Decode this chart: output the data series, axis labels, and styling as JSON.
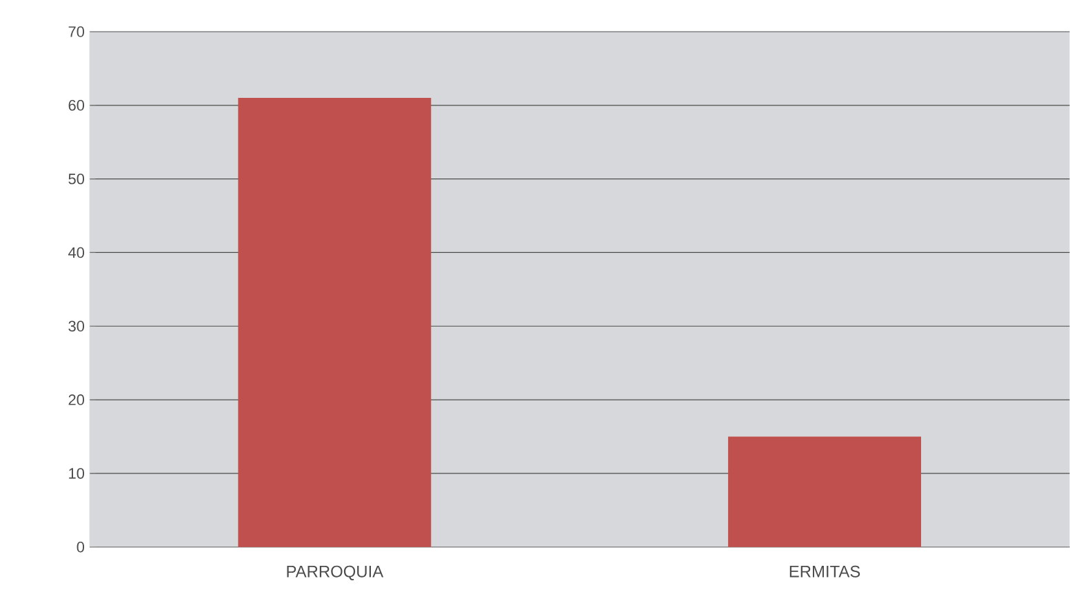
{
  "chart_data": {
    "type": "bar",
    "categories": [
      "PARROQUIA",
      "ERMITAS"
    ],
    "values": [
      61,
      15
    ],
    "color": "#c0504d",
    "ylim": [
      0,
      70
    ],
    "yticks": [
      0,
      10,
      20,
      30,
      40,
      50,
      60,
      70
    ],
    "grid": "y"
  }
}
